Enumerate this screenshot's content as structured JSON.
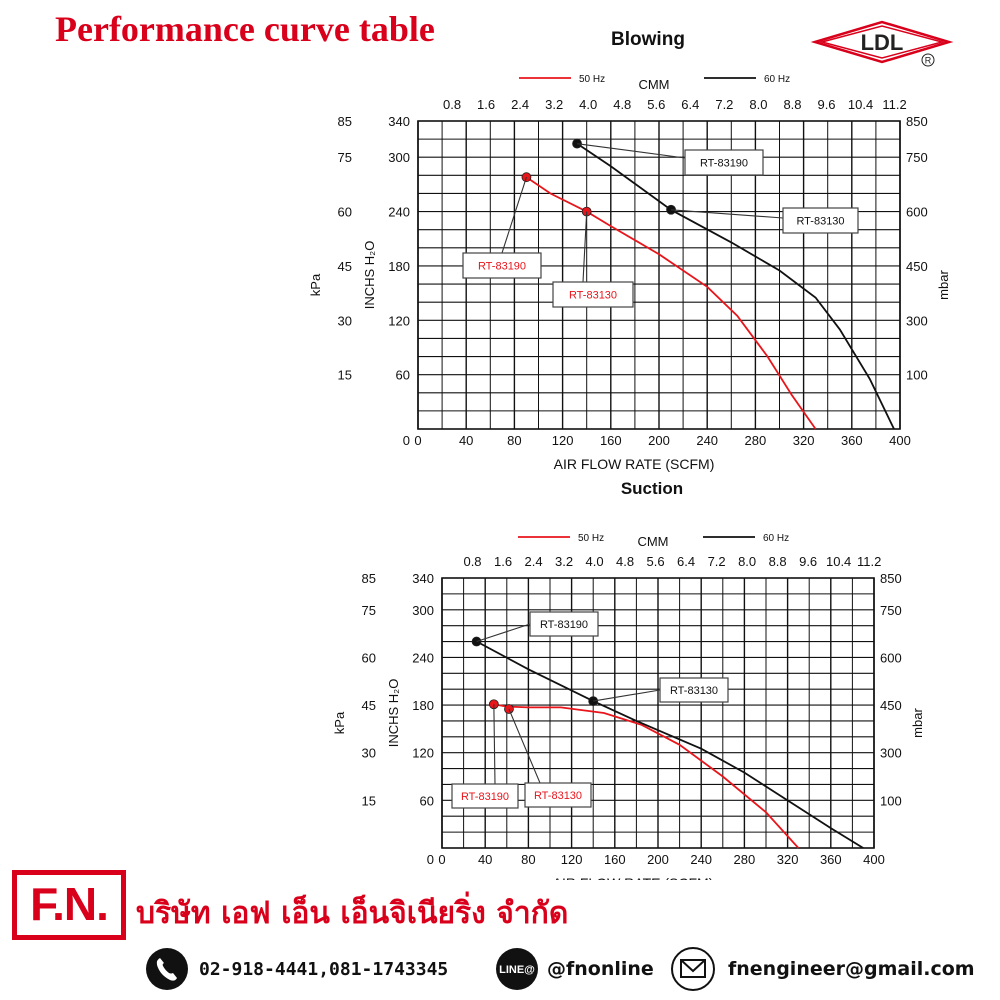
{
  "page": {
    "title": "Performance curve table",
    "logo_text": "LDL",
    "logo_registered": "R"
  },
  "colors": {
    "title_red": "#d9001b",
    "hz50": "#e8151b",
    "hz60": "#111111",
    "grid": "#111111"
  },
  "footer": {
    "logo_text": "F.N.",
    "company_name": "บริษัท เอฟ เอ็น เอ็นจิเนียริ่ง จำกัด",
    "phone": "02-918-4441,081-1743345",
    "line_badge": "LINE@",
    "line_id": "@fnonline",
    "email": "fnengineer@gmail.com",
    "phone_icon": "phone-icon",
    "line_icon": "line-icon",
    "email_icon": "envelope-icon"
  },
  "chart_data": [
    {
      "type": "line",
      "title": "Blowing",
      "xlabel": "AIR FLOW RATE (SCFM)",
      "x_ticks": [
        "0",
        "40",
        "80",
        "120",
        "160",
        "200",
        "240",
        "280",
        "320",
        "360",
        "400"
      ],
      "xlim": [
        0,
        400
      ],
      "x2label": "CMM",
      "x2_ticks": [
        "0.8",
        "1.6",
        "2.4",
        "3.2",
        "4.0",
        "4.8",
        "5.6",
        "6.4",
        "7.2",
        "8.0",
        "8.8",
        "9.6",
        "10.4",
        "11.2"
      ],
      "ylabel": "INCHS H₂O",
      "ylim": [
        0,
        340
      ],
      "y_ticks": [
        "60",
        "120",
        "180",
        "240",
        "300",
        "340"
      ],
      "y_kpa_label": "kPa",
      "y_kpa_ticks": [
        "15",
        "30",
        "45",
        "60",
        "75",
        "85"
      ],
      "y_mbar_label": "mbar",
      "y_mbar_ticks": [
        "100",
        "300",
        "450",
        "600",
        "750",
        "850"
      ],
      "grid": true,
      "legend": [
        {
          "name": "50 Hz",
          "color": "#e8151b"
        },
        {
          "name": "60 Hz",
          "color": "#111111"
        }
      ],
      "series": [
        {
          "name": "50 Hz",
          "color": "#e8151b",
          "points": [
            [
              90,
              278
            ],
            [
              110,
              260
            ],
            [
              140,
              240
            ],
            [
              160,
              224
            ],
            [
              200,
              193
            ],
            [
              240,
              157
            ],
            [
              265,
              125
            ],
            [
              290,
              80
            ],
            [
              310,
              38
            ],
            [
              330,
              0
            ]
          ],
          "markers": [
            {
              "label": "RT-83190",
              "x": 90,
              "y": 278
            },
            {
              "label": "RT-83130",
              "x": 140,
              "y": 240
            }
          ]
        },
        {
          "name": "60 Hz",
          "color": "#111111",
          "points": [
            [
              132,
              315
            ],
            [
              160,
              290
            ],
            [
              210,
              242
            ],
            [
              260,
              206
            ],
            [
              300,
              175
            ],
            [
              330,
              145
            ],
            [
              350,
              110
            ],
            [
              375,
              55
            ],
            [
              395,
              0
            ]
          ],
          "markers": [
            {
              "label": "RT-83190",
              "x": 132,
              "y": 315
            },
            {
              "label": "RT-83130",
              "x": 210,
              "y": 242
            }
          ]
        }
      ],
      "callouts": [
        {
          "label": "RT-83190",
          "color": "#e8151b",
          "series": "50 Hz"
        },
        {
          "label": "RT-83130",
          "color": "#e8151b",
          "series": "50 Hz"
        },
        {
          "label": "RT-83190",
          "color": "#111111",
          "series": "60 Hz"
        },
        {
          "label": "RT-83130",
          "color": "#111111",
          "series": "60 Hz"
        }
      ]
    },
    {
      "type": "line",
      "title": "Suction",
      "xlabel": "AIR FLOW RATE (SCFM)",
      "x_ticks": [
        "0",
        "40",
        "80",
        "120",
        "160",
        "200",
        "240",
        "280",
        "320",
        "360",
        "400"
      ],
      "xlim": [
        0,
        400
      ],
      "x2label": "CMM",
      "x2_ticks": [
        "0.8",
        "1.6",
        "2.4",
        "3.2",
        "4.0",
        "4.8",
        "5.6",
        "6.4",
        "7.2",
        "8.0",
        "8.8",
        "9.6",
        "10.4",
        "11.2"
      ],
      "ylabel": "INCHS H₂O",
      "ylim": [
        0,
        340
      ],
      "y_ticks": [
        "60",
        "120",
        "180",
        "240",
        "300",
        "340"
      ],
      "y_kpa_label": "kPa",
      "y_kpa_ticks": [
        "15",
        "30",
        "45",
        "60",
        "75",
        "85"
      ],
      "y_mbar_label": "mbar",
      "y_mbar_ticks": [
        "100",
        "300",
        "450",
        "600",
        "750",
        "850"
      ],
      "grid": true,
      "legend": [
        {
          "name": "50 Hz",
          "color": "#e8151b"
        },
        {
          "name": "60 Hz",
          "color": "#111111"
        }
      ],
      "series": [
        {
          "name": "50 Hz",
          "color": "#e8151b",
          "points": [
            [
              48,
              181
            ],
            [
              60,
              178
            ],
            [
              80,
              177
            ],
            [
              110,
              177
            ],
            [
              150,
              170
            ],
            [
              185,
              155
            ],
            [
              220,
              130
            ],
            [
              260,
              90
            ],
            [
              300,
              45
            ],
            [
              330,
              0
            ]
          ],
          "markers": [
            {
              "label": "RT-83190",
              "x": 48,
              "y": 181
            },
            {
              "label": "RT-83130",
              "x": 62,
              "y": 175
            }
          ]
        },
        {
          "name": "60 Hz",
          "color": "#111111",
          "points": [
            [
              32,
              260
            ],
            [
              80,
              225
            ],
            [
              140,
              185
            ],
            [
              180,
              160
            ],
            [
              240,
              125
            ],
            [
              280,
              95
            ],
            [
              320,
              60
            ],
            [
              360,
              25
            ],
            [
              390,
              0
            ]
          ],
          "markers": [
            {
              "label": "RT-83190",
              "x": 32,
              "y": 260
            },
            {
              "label": "RT-83130",
              "x": 140,
              "y": 185
            }
          ]
        }
      ],
      "callouts": [
        {
          "label": "RT-83190",
          "color": "#111111",
          "series": "60 Hz"
        },
        {
          "label": "RT-83130",
          "color": "#111111",
          "series": "60 Hz"
        },
        {
          "label": "RT-83190",
          "color": "#e8151b",
          "series": "50 Hz"
        },
        {
          "label": "RT-83130",
          "color": "#e8151b",
          "series": "50 Hz"
        }
      ]
    }
  ]
}
